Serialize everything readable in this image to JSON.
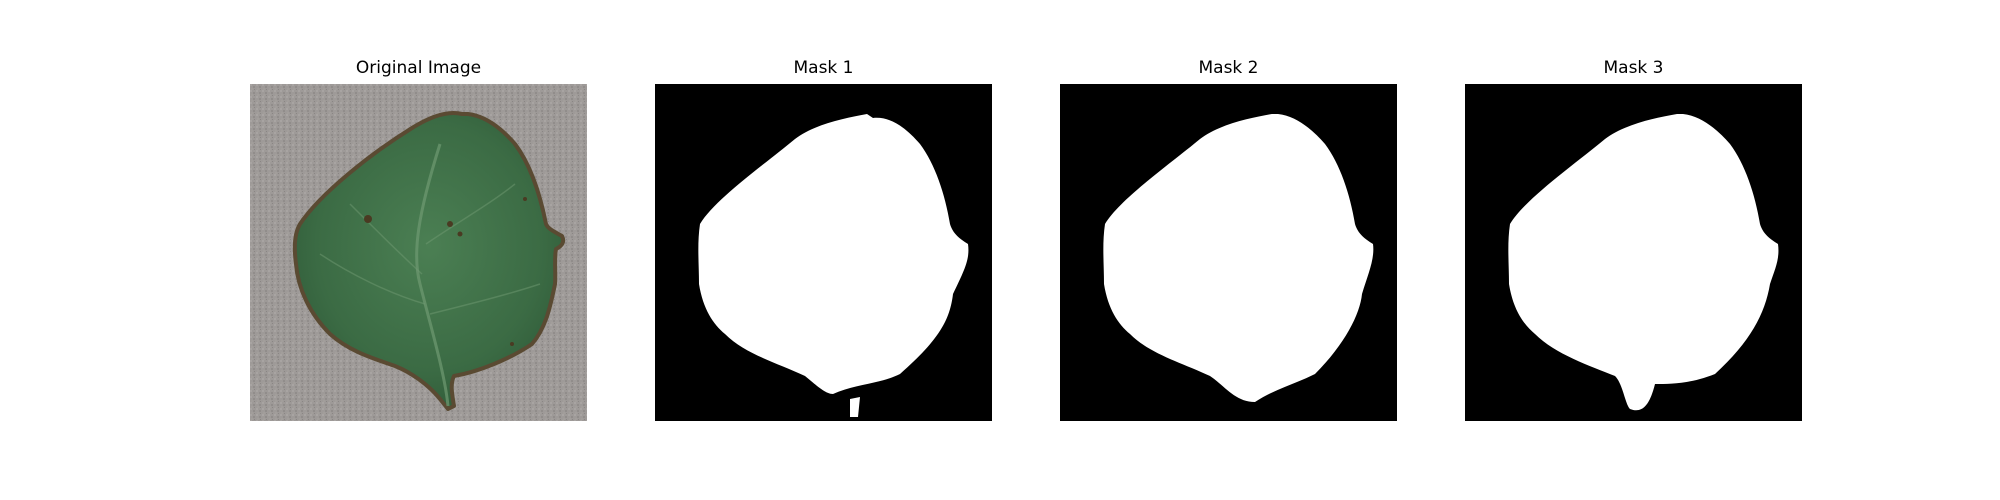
{
  "figure": {
    "panels": [
      {
        "title": "Original Image",
        "kind": "photo"
      },
      {
        "title": "Mask 1",
        "kind": "mask"
      },
      {
        "title": "Mask 2",
        "kind": "mask"
      },
      {
        "title": "Mask 3",
        "kind": "mask"
      }
    ]
  },
  "colors": {
    "mask_background": "#000000",
    "mask_foreground": "#ffffff",
    "photo_background": "#9e9a98",
    "leaf": "#3d6e45",
    "leaf_edge": "#5a4a32",
    "leaf_vein": "#6f9a72"
  }
}
